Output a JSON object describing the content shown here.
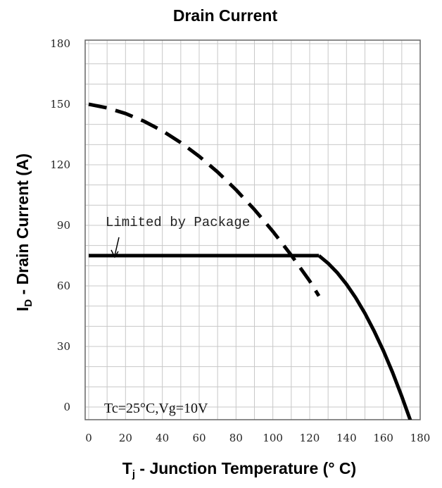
{
  "chart_data": {
    "type": "line",
    "title": "Drain Current",
    "xlabel_main": "T",
    "xlabel_sub": "j",
    "xlabel_rest": " - Junction Temperature (° C)",
    "ylabel_main": "I",
    "ylabel_sub": "D",
    "ylabel_rest": " - Drain Current (A)",
    "xlim": [
      0,
      180
    ],
    "ylim": [
      0,
      180
    ],
    "x_ticks": [
      "0",
      "20",
      "40",
      "60",
      "80",
      "100",
      "120",
      "140",
      "160",
      "180"
    ],
    "y_ticks": [
      "180",
      "150",
      "120",
      "90",
      "60",
      "30",
      "0"
    ],
    "grid": true,
    "series": [
      {
        "name": "",
        "style": "dashed",
        "x": [
          0,
          10,
          20,
          30,
          40,
          50,
          60,
          70,
          80,
          90,
          100,
          110,
          120,
          125
        ],
        "y": [
          150,
          148.2,
          145.4,
          141.6,
          136.8,
          131,
          124.2,
          116.4,
          107.6,
          97.8,
          87,
          75.2,
          62.4,
          55
        ]
      },
      {
        "name": "",
        "style": "solid",
        "x": [
          0,
          125
        ],
        "y": [
          75,
          75
        ]
      },
      {
        "name": "",
        "style": "solid",
        "x": [
          125,
          130,
          135,
          140,
          145,
          150,
          155,
          160,
          165,
          170,
          175
        ],
        "y": [
          75,
          71.2,
          66.5,
          60.8,
          54.1,
          46.4,
          37.6,
          27.9,
          17.1,
          5.3,
          -7.4
        ]
      }
    ],
    "annotations": {
      "package_limit": "Limited by Package",
      "conditions": "Tc=25°C,Vg=10V"
    }
  }
}
